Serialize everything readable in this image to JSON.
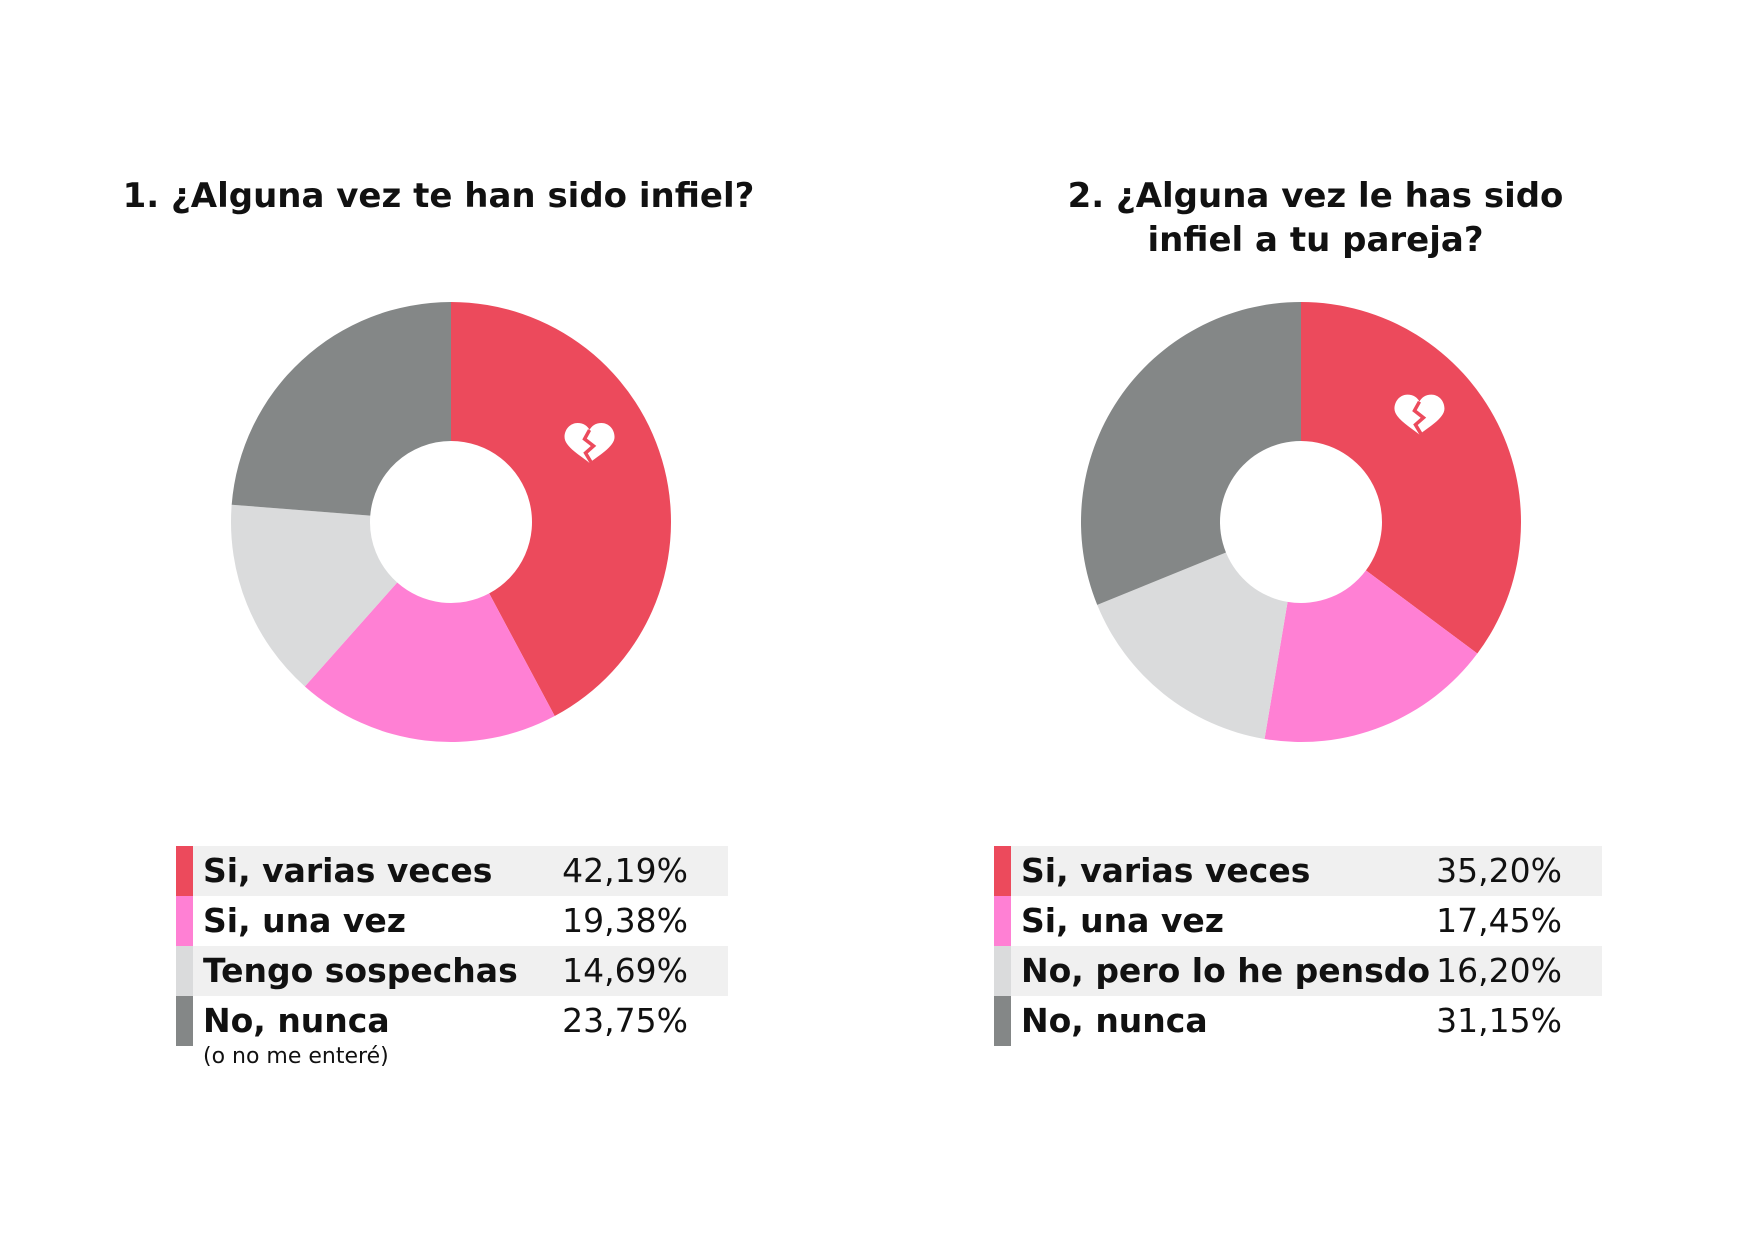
{
  "chart_data": [
    {
      "type": "pie",
      "title": "1. ¿Alguna vez te han sido infiel?",
      "title_lines": [
        "1. ¿Alguna vez te han sido infiel?"
      ],
      "categories": [
        "Si, varias veces",
        "Si, una vez",
        "Tengo sospechas",
        "No, nunca"
      ],
      "values": [
        42.19,
        19.38,
        14.69,
        23.75
      ],
      "value_labels": [
        "42,19%",
        "19,38%",
        "14,69%",
        "23,75%"
      ],
      "notes": [
        "",
        "",
        "",
        "(o no me enteré)"
      ],
      "colors": [
        "#ec4a5c",
        "#ff80d4",
        "#dadbdc",
        "#848787"
      ],
      "donut": true,
      "icon": "broken-heart-icon",
      "icon_slice": 0
    },
    {
      "type": "pie",
      "title": "2. ¿Alguna vez le has sido infiel a tu pareja?",
      "title_lines": [
        "2. ¿Alguna vez le has sido",
        "infiel a tu pareja?"
      ],
      "categories": [
        "Si, varias veces",
        "Si, una vez",
        "No, pero lo he pensdo",
        "No, nunca"
      ],
      "values": [
        35.2,
        17.45,
        16.2,
        31.15
      ],
      "value_labels": [
        "35,20%",
        "17,45%",
        "16,20%",
        "31,15%"
      ],
      "notes": [
        "",
        "",
        "",
        ""
      ],
      "colors": [
        "#ec4a5c",
        "#ff80d4",
        "#dadbdc",
        "#848787"
      ],
      "donut": true,
      "icon": "broken-heart-icon",
      "icon_slice": 0
    }
  ]
}
